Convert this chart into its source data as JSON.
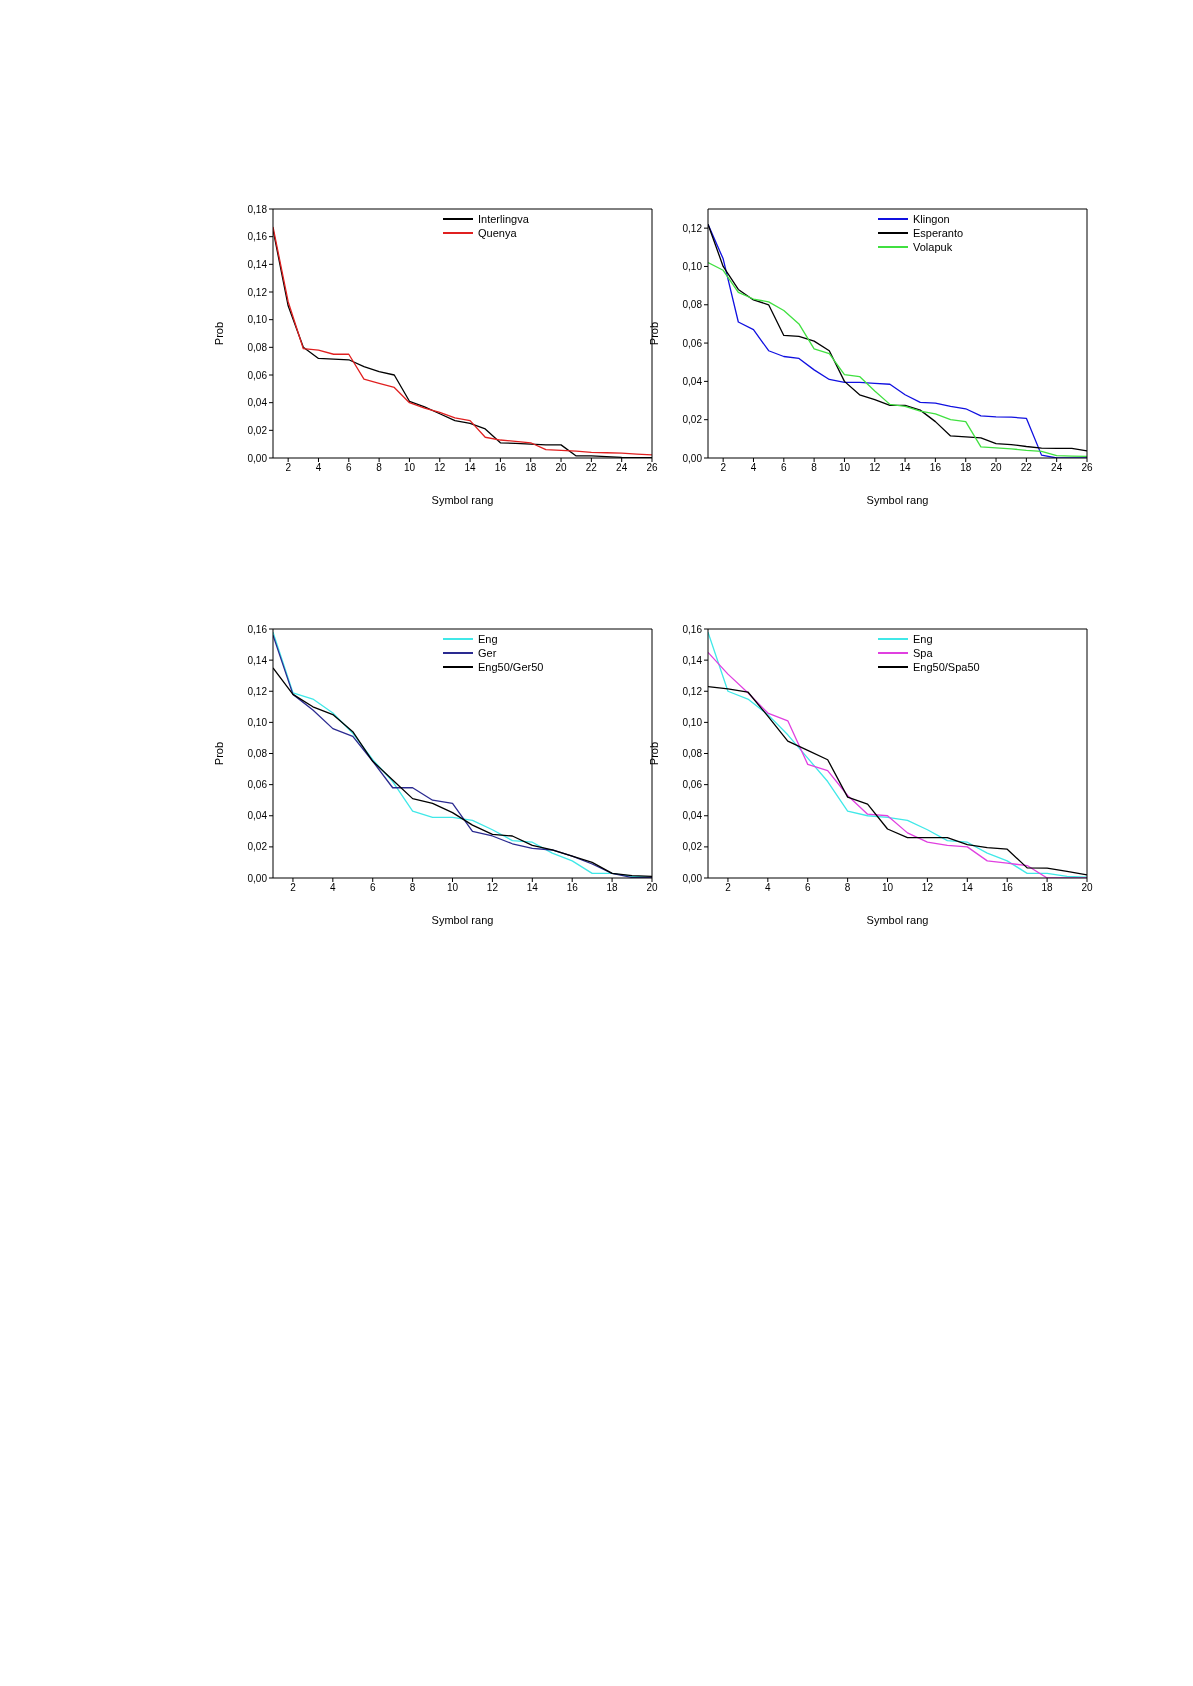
{
  "chart_data": [
    {
      "type": "line",
      "xlabel": "Symbol rang",
      "ylabel": "Prob",
      "x": [
        1,
        2,
        3,
        4,
        5,
        6,
        7,
        8,
        9,
        10,
        11,
        12,
        13,
        14,
        15,
        16,
        17,
        18,
        19,
        20,
        21,
        22,
        23,
        24,
        25,
        26
      ],
      "xlim": [
        1,
        26
      ],
      "xticks": [
        2,
        4,
        6,
        8,
        10,
        12,
        14,
        16,
        18,
        20,
        22,
        24,
        26
      ],
      "ylim": [
        0,
        0.18
      ],
      "yticks": [
        {
          "value": 0,
          "label": "0,00"
        },
        {
          "value": 0.02,
          "label": "0,02"
        },
        {
          "value": 0.04,
          "label": "0,04"
        },
        {
          "value": 0.06,
          "label": "0,06"
        },
        {
          "value": 0.08,
          "label": "0,08"
        },
        {
          "value": 0.1,
          "label": "0,10"
        },
        {
          "value": 0.12,
          "label": "0,12"
        },
        {
          "value": 0.14,
          "label": "0,14"
        },
        {
          "value": 0.16,
          "label": "0,16"
        },
        {
          "value": 0.18,
          "label": "0,18"
        }
      ],
      "grid": false,
      "legend": "top right",
      "marker": "none",
      "series": [
        {
          "name": "Interlingva",
          "color": "#000000",
          "values": [
            0.165,
            0.11,
            0.08,
            0.072,
            0.0715,
            0.071,
            0.066,
            0.0625,
            0.06,
            0.041,
            0.037,
            0.032,
            0.027,
            0.025,
            0.021,
            0.011,
            0.0105,
            0.01,
            0.0095,
            0.0095,
            0.0015,
            0.0015,
            0.001,
            0.0005,
            0.0003,
            0.0002
          ]
        },
        {
          "name": "Quenya",
          "color": "#e02020",
          "values": [
            0.167,
            0.113,
            0.079,
            0.078,
            0.075,
            0.075,
            0.057,
            0.054,
            0.051,
            0.04,
            0.036,
            0.033,
            0.029,
            0.027,
            0.015,
            0.013,
            0.012,
            0.011,
            0.006,
            0.0055,
            0.005,
            0.004,
            0.0038,
            0.0035,
            0.0028,
            0.0022
          ]
        }
      ]
    },
    {
      "type": "line",
      "xlabel": "Symbol rang",
      "ylabel": "Prob",
      "x": [
        1,
        2,
        3,
        4,
        5,
        6,
        7,
        8,
        9,
        10,
        11,
        12,
        13,
        14,
        15,
        16,
        17,
        18,
        19,
        20,
        21,
        22,
        23,
        24,
        25,
        26
      ],
      "xlim": [
        1,
        26
      ],
      "xticks": [
        2,
        4,
        6,
        8,
        10,
        12,
        14,
        16,
        18,
        20,
        22,
        24,
        26
      ],
      "ylim": [
        0,
        0.13
      ],
      "yticks": [
        {
          "value": 0,
          "label": "0,00"
        },
        {
          "value": 0.02,
          "label": "0,02"
        },
        {
          "value": 0.04,
          "label": "0,04"
        },
        {
          "value": 0.06,
          "label": "0,06"
        },
        {
          "value": 0.08,
          "label": "0,08"
        },
        {
          "value": 0.1,
          "label": "0,10"
        },
        {
          "value": 0.12,
          "label": "0,12"
        }
      ],
      "grid": false,
      "legend": "top right",
      "marker": "none",
      "series": [
        {
          "name": "Klingon",
          "color": "#1010e0",
          "values": [
            0.122,
            0.104,
            0.071,
            0.067,
            0.056,
            0.053,
            0.052,
            0.046,
            0.041,
            0.0395,
            0.0395,
            0.039,
            0.0385,
            0.033,
            0.029,
            0.0287,
            0.027,
            0.0257,
            0.022,
            0.0215,
            0.0213,
            0.0207,
            0.0015,
            0,
            0,
            0
          ]
        },
        {
          "name": "Esperanto",
          "color": "#000000",
          "values": [
            0.122,
            0.1,
            0.088,
            0.0825,
            0.08,
            0.064,
            0.0635,
            0.061,
            0.056,
            0.04,
            0.033,
            0.0305,
            0.0275,
            0.0275,
            0.025,
            0.019,
            0.0115,
            0.011,
            0.0105,
            0.0075,
            0.007,
            0.006,
            0.0052,
            0.005,
            0.005,
            0.0037
          ]
        },
        {
          "name": "Volapuk",
          "color": "#40e040",
          "values": [
            0.102,
            0.098,
            0.0865,
            0.083,
            0.0815,
            0.077,
            0.07,
            0.057,
            0.0545,
            0.0435,
            0.0425,
            0.035,
            0.028,
            0.027,
            0.0245,
            0.023,
            0.02,
            0.019,
            0.0058,
            0.0053,
            0.0048,
            0.004,
            0.0035,
            0.0012,
            0.001,
            0.0008
          ]
        }
      ]
    },
    {
      "type": "line",
      "xlabel": "Symbol rang",
      "ylabel": "Prob",
      "x": [
        1,
        2,
        3,
        4,
        5,
        6,
        7,
        8,
        9,
        10,
        11,
        12,
        13,
        14,
        15,
        16,
        17,
        18,
        19,
        20
      ],
      "xlim": [
        1,
        20
      ],
      "xticks": [
        2,
        4,
        6,
        8,
        10,
        12,
        14,
        16,
        18,
        20
      ],
      "ylim": [
        0,
        0.16
      ],
      "yticks": [
        {
          "value": 0,
          "label": "0,00"
        },
        {
          "value": 0.02,
          "label": "0,02"
        },
        {
          "value": 0.04,
          "label": "0,04"
        },
        {
          "value": 0.06,
          "label": "0,06"
        },
        {
          "value": 0.08,
          "label": "0,08"
        },
        {
          "value": 0.1,
          "label": "0,10"
        },
        {
          "value": 0.12,
          "label": "0,12"
        },
        {
          "value": 0.14,
          "label": "0,14"
        },
        {
          "value": 0.16,
          "label": "0,16"
        }
      ],
      "grid": false,
      "legend": "top right",
      "marker": "none",
      "series": [
        {
          "name": "Eng",
          "color": "#40e8e8",
          "values": [
            0.158,
            0.119,
            0.115,
            0.106,
            0.093,
            0.076,
            0.062,
            0.043,
            0.039,
            0.039,
            0.037,
            0.031,
            0.024,
            0.023,
            0.016,
            0.011,
            0.003,
            0.003,
            0.001,
            0.0005
          ]
        },
        {
          "name": "Ger",
          "color": "#2a2a90",
          "values": [
            0.156,
            0.118,
            0.108,
            0.096,
            0.091,
            0.075,
            0.058,
            0.058,
            0.05,
            0.048,
            0.03,
            0.027,
            0.022,
            0.019,
            0.018,
            0.014,
            0.009,
            0.003,
            0.0003,
            0.0003
          ]
        },
        {
          "name": "Eng50/Ger50",
          "color": "#000000",
          "values": [
            0.135,
            0.118,
            0.11,
            0.105,
            0.094,
            0.075,
            0.063,
            0.051,
            0.048,
            0.042,
            0.034,
            0.028,
            0.027,
            0.021,
            0.018,
            0.014,
            0.01,
            0.003,
            0.0015,
            0.001
          ]
        }
      ]
    },
    {
      "type": "line",
      "xlabel": "Symbol rang",
      "ylabel": "Prob",
      "x": [
        1,
        2,
        3,
        4,
        5,
        6,
        7,
        8,
        9,
        10,
        11,
        12,
        13,
        14,
        15,
        16,
        17,
        18,
        19,
        20
      ],
      "xlim": [
        1,
        20
      ],
      "xticks": [
        2,
        4,
        6,
        8,
        10,
        12,
        14,
        16,
        18,
        20
      ],
      "ylim": [
        0,
        0.16
      ],
      "yticks": [
        {
          "value": 0,
          "label": "0,00"
        },
        {
          "value": 0.02,
          "label": "0,02"
        },
        {
          "value": 0.04,
          "label": "0,04"
        },
        {
          "value": 0.06,
          "label": "0,06"
        },
        {
          "value": 0.08,
          "label": "0,08"
        },
        {
          "value": 0.1,
          "label": "0,10"
        },
        {
          "value": 0.12,
          "label": "0,12"
        },
        {
          "value": 0.14,
          "label": "0,14"
        },
        {
          "value": 0.16,
          "label": "0,16"
        }
      ],
      "grid": false,
      "legend": "top right",
      "marker": "none",
      "series": [
        {
          "name": "Eng",
          "color": "#40e8e8",
          "values": [
            0.158,
            0.12,
            0.115,
            0.105,
            0.092,
            0.077,
            0.062,
            0.043,
            0.04,
            0.039,
            0.037,
            0.031,
            0.024,
            0.023,
            0.016,
            0.011,
            0.003,
            0.003,
            0.001,
            0.0005
          ]
        },
        {
          "name": "Spa",
          "color": "#e040e0",
          "values": [
            0.145,
            0.131,
            0.119,
            0.106,
            0.101,
            0.073,
            0.069,
            0.053,
            0.041,
            0.04,
            0.029,
            0.023,
            0.021,
            0.02,
            0.011,
            0.0095,
            0.008,
            0,
            0,
            0
          ]
        },
        {
          "name": "Eng50/Spa50",
          "color": "#000000",
          "values": [
            0.123,
            0.1215,
            0.1195,
            0.104,
            0.088,
            0.082,
            0.076,
            0.052,
            0.0475,
            0.0315,
            0.026,
            0.026,
            0.026,
            0.0215,
            0.0195,
            0.0185,
            0.0065,
            0.0063,
            0.0043,
            0.002
          ]
        }
      ]
    }
  ]
}
